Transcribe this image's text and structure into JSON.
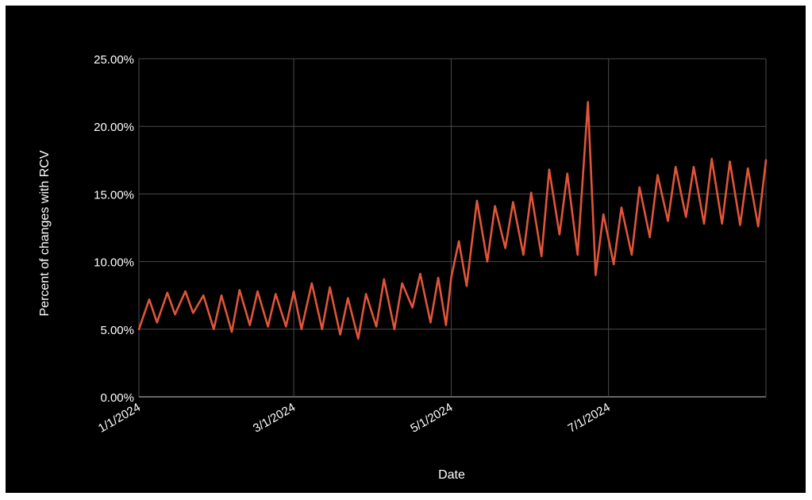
{
  "chart_data": {
    "type": "line",
    "title": "",
    "xlabel": "Date",
    "ylabel": "Percent of changes with RCV",
    "x_range": [
      "1/1/2024",
      "8/31/2024"
    ],
    "ylim": [
      0,
      25
    ],
    "y_ticks": [
      "0.00%",
      "5.00%",
      "10.00%",
      "15.00%",
      "20.00%",
      "25.00%"
    ],
    "x_ticks": [
      "1/1/2024",
      "3/1/2024",
      "5/1/2024",
      "7/1/2024"
    ],
    "grid": true,
    "legend": "none",
    "series": [
      {
        "color": "#e0553a",
        "points": [
          [
            "1/1/2024",
            5.0
          ],
          [
            "1/5/2024",
            7.2
          ],
          [
            "1/8/2024",
            5.5
          ],
          [
            "1/12/2024",
            7.7
          ],
          [
            "1/15/2024",
            6.1
          ],
          [
            "1/19/2024",
            7.8
          ],
          [
            "1/22/2024",
            6.2
          ],
          [
            "1/26/2024",
            7.5
          ],
          [
            "1/30/2024",
            5.0
          ],
          [
            "2/2/2024",
            7.5
          ],
          [
            "2/6/2024",
            4.8
          ],
          [
            "2/9/2024",
            7.9
          ],
          [
            "2/13/2024",
            5.3
          ],
          [
            "2/16/2024",
            7.8
          ],
          [
            "2/20/2024",
            5.2
          ],
          [
            "2/23/2024",
            7.6
          ],
          [
            "2/27/2024",
            5.2
          ],
          [
            "3/1/2024",
            7.8
          ],
          [
            "3/4/2024",
            5.0
          ],
          [
            "3/8/2024",
            8.4
          ],
          [
            "3/12/2024",
            5.0
          ],
          [
            "3/15/2024",
            8.1
          ],
          [
            "3/19/2024",
            4.6
          ],
          [
            "3/22/2024",
            7.3
          ],
          [
            "3/26/2024",
            4.3
          ],
          [
            "3/29/2024",
            7.6
          ],
          [
            "4/2/2024",
            5.2
          ],
          [
            "4/5/2024",
            8.7
          ],
          [
            "4/9/2024",
            5.0
          ],
          [
            "4/12/2024",
            8.4
          ],
          [
            "4/16/2024",
            6.6
          ],
          [
            "4/19/2024",
            9.1
          ],
          [
            "4/23/2024",
            5.5
          ],
          [
            "4/26/2024",
            8.8
          ],
          [
            "4/29/2024",
            5.3
          ],
          [
            "5/1/2024",
            8.8
          ],
          [
            "5/4/2024",
            11.5
          ],
          [
            "5/7/2024",
            8.2
          ],
          [
            "5/11/2024",
            14.5
          ],
          [
            "5/15/2024",
            10.0
          ],
          [
            "5/18/2024",
            14.1
          ],
          [
            "5/22/2024",
            11.0
          ],
          [
            "5/25/2024",
            14.4
          ],
          [
            "5/29/2024",
            10.5
          ],
          [
            "6/1/2024",
            15.1
          ],
          [
            "6/5/2024",
            10.4
          ],
          [
            "6/8/2024",
            16.8
          ],
          [
            "6/12/2024",
            12.0
          ],
          [
            "6/15/2024",
            16.5
          ],
          [
            "6/19/2024",
            10.5
          ],
          [
            "6/23/2024",
            21.8
          ],
          [
            "6/26/2024",
            9.0
          ],
          [
            "6/29/2024",
            13.5
          ],
          [
            "7/3/2024",
            9.8
          ],
          [
            "7/6/2024",
            14.0
          ],
          [
            "7/10/2024",
            10.5
          ],
          [
            "7/13/2024",
            15.5
          ],
          [
            "7/17/2024",
            11.8
          ],
          [
            "7/20/2024",
            16.4
          ],
          [
            "7/24/2024",
            13.0
          ],
          [
            "7/27/2024",
            17.0
          ],
          [
            "7/31/2024",
            13.3
          ],
          [
            "8/3/2024",
            17.0
          ],
          [
            "8/7/2024",
            12.8
          ],
          [
            "8/10/2024",
            17.6
          ],
          [
            "8/14/2024",
            12.8
          ],
          [
            "8/17/2024",
            17.4
          ],
          [
            "8/21/2024",
            12.7
          ],
          [
            "8/24/2024",
            16.9
          ],
          [
            "8/28/2024",
            12.6
          ],
          [
            "8/31/2024",
            17.5
          ]
        ]
      }
    ]
  }
}
